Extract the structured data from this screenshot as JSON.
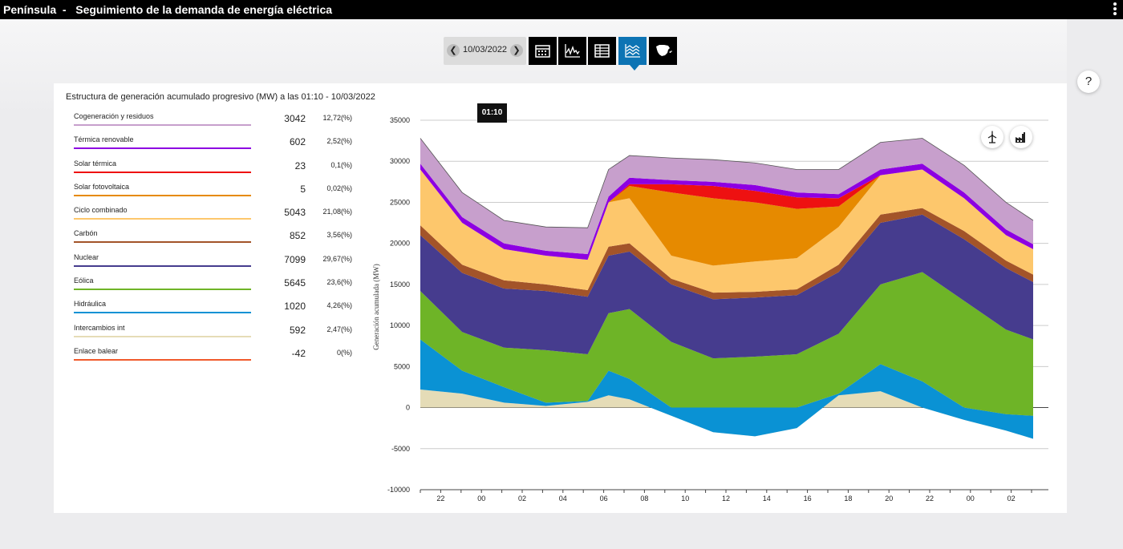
{
  "header": {
    "title": "Península  -   Seguimiento de la demanda de energía eléctrica",
    "menu_icon": "more-vertical-icon"
  },
  "toolbar": {
    "date": "10/03/2022",
    "prev_icon": "chevron-left-icon",
    "next_icon": "chevron-right-icon",
    "buttons": [
      {
        "icon": "calendar-icon",
        "active": false
      },
      {
        "icon": "line-chart-icon",
        "active": false
      },
      {
        "icon": "table-icon",
        "active": false
      },
      {
        "icon": "stacked-area-icon",
        "active": true
      },
      {
        "icon": "spain-map-icon",
        "active": false
      }
    ]
  },
  "help": {
    "label": "?"
  },
  "panel": {
    "title": "Estructura de generación acumulado progresivo (MW) a las 01:10 - 10/03/2022"
  },
  "legend": [
    {
      "name": "Cogeneración y residuos",
      "value": "3042",
      "pct": "12,72(%)",
      "color": "#c79fcc"
    },
    {
      "name": "Térmica renovable",
      "value": "602",
      "pct": "2,52(%)",
      "color": "#8d00e2"
    },
    {
      "name": "Solar térmica",
      "value": "23",
      "pct": "0,1(%)",
      "color": "#ee1111"
    },
    {
      "name": "Solar fotovoltaica",
      "value": "5",
      "pct": "0,02(%)",
      "color": "#e68a00"
    },
    {
      "name": "Ciclo combinado",
      "value": "5043",
      "pct": "21,08(%)",
      "color": "#fdc76c"
    },
    {
      "name": "Carbón",
      "value": "852",
      "pct": "3,56(%)",
      "color": "#a35429"
    },
    {
      "name": "Nuclear",
      "value": "7099",
      "pct": "29,67(%)",
      "color": "#463c8e"
    },
    {
      "name": "Eólica",
      "value": "5645",
      "pct": "23,6(%)",
      "color": "#6eb427"
    },
    {
      "name": "Hidráulica",
      "value": "1020",
      "pct": "4,26(%)",
      "color": "#0a92d4"
    },
    {
      "name": "Intercambios int",
      "value": "592",
      "pct": "2,47(%)",
      "color": "#e5dcb7"
    },
    {
      "name": "Enlace balear",
      "value": "-42",
      "pct": "0(%)",
      "color": "#f15a2c"
    }
  ],
  "chart_data": {
    "type": "area",
    "stacked": true,
    "ylabel": "Generación acumulada (MW)",
    "ylim": [
      -10000,
      35000
    ],
    "yticks": [
      -10000,
      -5000,
      0,
      5000,
      10000,
      15000,
      20000,
      25000,
      30000,
      35000
    ],
    "x_tick_labels": [
      "22",
      "00",
      "02",
      "04",
      "06",
      "08",
      "10",
      "12",
      "14",
      "16",
      "18",
      "20",
      "22",
      "00",
      "02"
    ],
    "x_hours": [
      0,
      2,
      4,
      6,
      8,
      9,
      10,
      12,
      14,
      16,
      18,
      20,
      22,
      24,
      26,
      28,
      29.3
    ],
    "cursor_label": "01:10",
    "grid": true,
    "series": [
      {
        "name": "Intercambios int",
        "color": "#e5dcb7",
        "values": [
          2200,
          1700,
          600,
          200,
          700,
          1500,
          1000,
          -1000,
          -3000,
          -3500,
          -2500,
          1500,
          2000,
          0,
          -1500,
          -2800,
          -3800
        ]
      },
      {
        "name": "Hidráulica",
        "color": "#0a92d4",
        "values": [
          8300,
          4500,
          2500,
          600,
          800,
          4500,
          3500,
          0,
          0,
          0,
          0,
          1700,
          5300,
          3200,
          0,
          -800,
          -1000
        ]
      },
      {
        "name": "Eólica",
        "color": "#6eb427",
        "values": [
          14200,
          9200,
          7300,
          7000,
          6500,
          11500,
          12000,
          8000,
          6000,
          6200,
          6500,
          9000,
          15000,
          16500,
          13000,
          9500,
          8300
        ]
      },
      {
        "name": "Nuclear",
        "color": "#463c8e",
        "values": [
          21000,
          16400,
          14500,
          14200,
          13500,
          18500,
          19000,
          15000,
          13200,
          13400,
          13700,
          16500,
          22500,
          23500,
          20500,
          17000,
          15300
        ]
      },
      {
        "name": "Carbón",
        "color": "#a35429",
        "values": [
          22200,
          17400,
          15500,
          15000,
          14300,
          19600,
          20000,
          15700,
          14000,
          14100,
          14400,
          17400,
          23500,
          24300,
          21500,
          17900,
          16200
        ]
      },
      {
        "name": "Ciclo combinado",
        "color": "#fdc76c",
        "values": [
          29000,
          22500,
          19300,
          18500,
          18000,
          25000,
          25500,
          18500,
          17300,
          17800,
          18200,
          22000,
          28300,
          29000,
          25500,
          21000,
          19300
        ]
      },
      {
        "name": "Solar fotovoltaica",
        "color": "#e68a00",
        "values": [
          29000,
          22500,
          19300,
          18500,
          18000,
          25000,
          27000,
          26200,
          25500,
          25000,
          24200,
          24500,
          28300,
          29000,
          25500,
          21000,
          19300
        ]
      },
      {
        "name": "Solar térmica",
        "color": "#ee1111",
        "values": [
          29000,
          22500,
          19300,
          18500,
          18000,
          25000,
          27200,
          27200,
          27000,
          26400,
          25600,
          25500,
          28300,
          29000,
          25500,
          21000,
          19300
        ]
      },
      {
        "name": "Térmica renovable",
        "color": "#8d00e2",
        "values": [
          29700,
          23200,
          20000,
          19100,
          18700,
          25700,
          28000,
          27700,
          27500,
          27100,
          26200,
          26000,
          29000,
          29700,
          26200,
          21700,
          19900
        ]
      },
      {
        "name": "Cogeneración y residuos",
        "color": "#c79fcc",
        "values": [
          32800,
          26200,
          22800,
          22000,
          21900,
          29000,
          30700,
          30400,
          30200,
          29800,
          29000,
          29000,
          32300,
          32800,
          29500,
          25000,
          22800
        ]
      },
      {
        "name": "Enlace balear",
        "color": "#f15a2c",
        "values": [
          32800,
          26200,
          22800,
          22000,
          21900,
          29000,
          30700,
          30400,
          30200,
          29800,
          29000,
          29000,
          32300,
          32800,
          29500,
          25000,
          22800
        ]
      }
    ]
  },
  "chart_buttons": [
    {
      "icon": "wind-turbine-icon"
    },
    {
      "icon": "factory-icon"
    }
  ]
}
